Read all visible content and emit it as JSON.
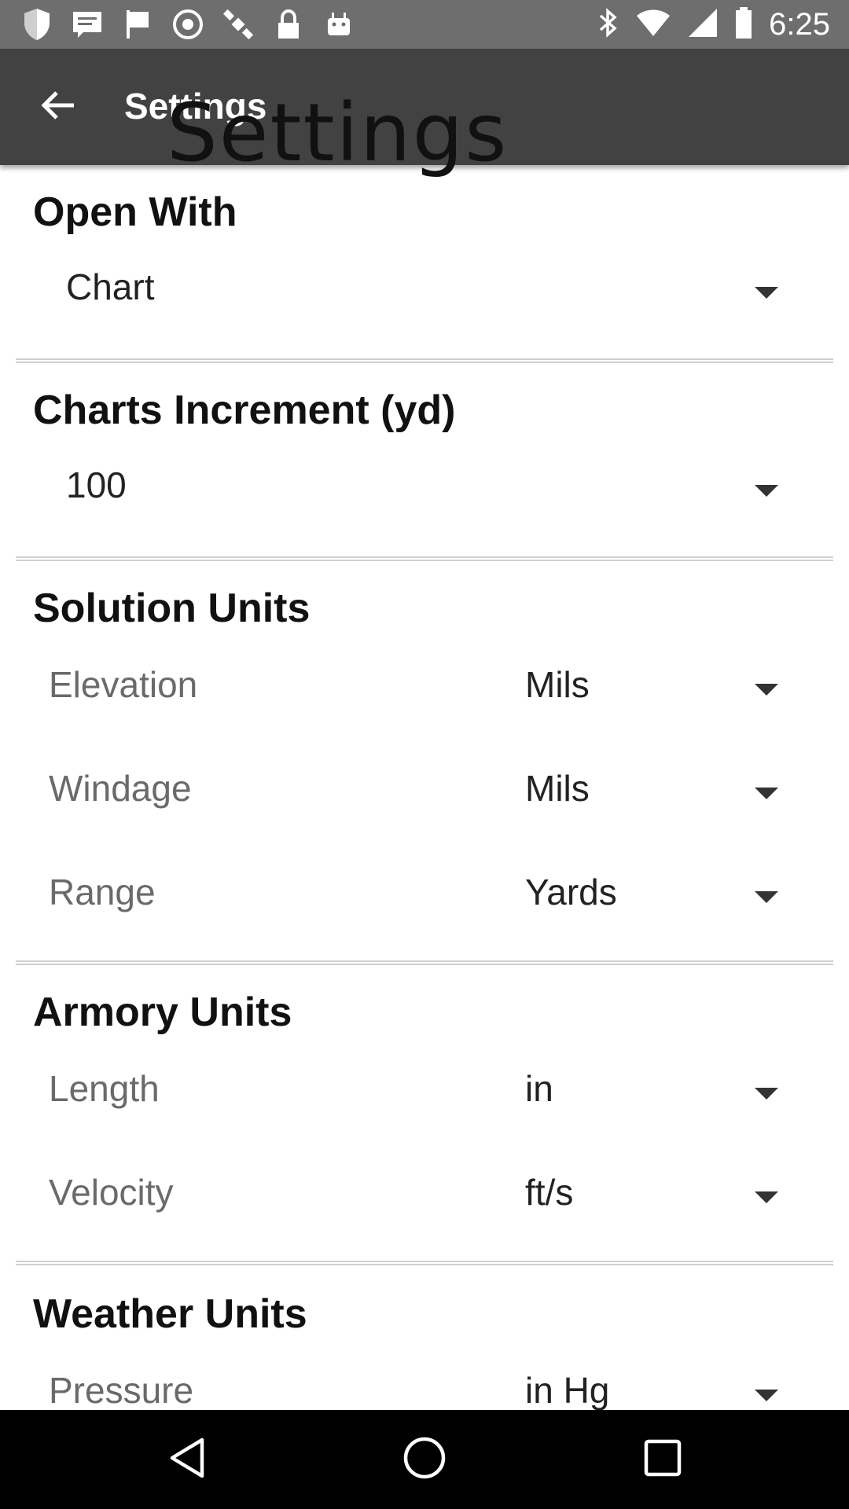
{
  "status_bar": {
    "time": "6:25",
    "left_icons": [
      "shield-icon",
      "message-icon",
      "flag-icon",
      "fake-gps-icon",
      "satellite-icon",
      "lock-icon",
      "android-icon"
    ],
    "right_icons": [
      "bluetooth-icon",
      "wifi-icon",
      "signal-icon",
      "battery-icon"
    ]
  },
  "app_bar": {
    "title": "Settings",
    "title_overlay": "Settings"
  },
  "sections": {
    "open_with": {
      "title": "Open With",
      "value": "Chart"
    },
    "charts_increment": {
      "title": "Charts Increment (yd)",
      "value": "100"
    },
    "solution_units": {
      "title": "Solution Units",
      "rows": [
        {
          "label": "Elevation",
          "value": "Mils"
        },
        {
          "label": "Windage",
          "value": "Mils"
        },
        {
          "label": "Range",
          "value": "Yards"
        }
      ]
    },
    "armory_units": {
      "title": "Armory Units",
      "rows": [
        {
          "label": "Length",
          "value": "in"
        },
        {
          "label": "Velocity",
          "value": "ft/s"
        }
      ]
    },
    "weather_units": {
      "title": "Weather Units",
      "rows": [
        {
          "label": "Pressure",
          "value": "in Hg"
        }
      ]
    }
  },
  "nav_bar": {
    "buttons": [
      "back-triangle-icon",
      "home-circle-icon",
      "recents-square-icon"
    ]
  }
}
